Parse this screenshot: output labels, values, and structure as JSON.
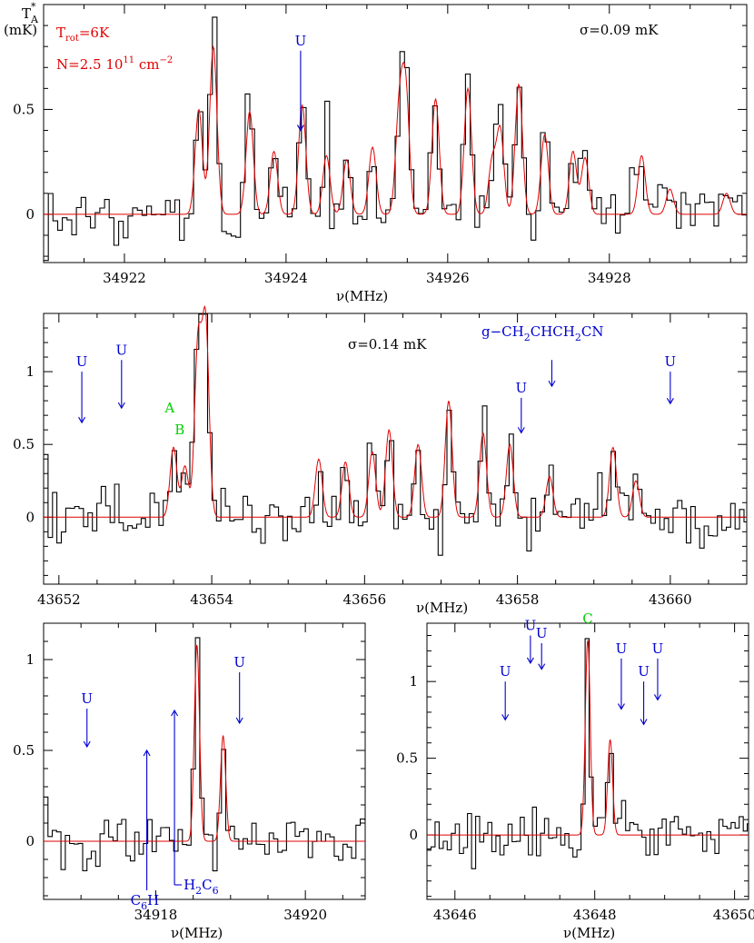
{
  "figure": {
    "ylabel_top": "T",
    "ylabel_top_sub": "A",
    "ylabel_top_sup": "*",
    "ylabel_unit": "(mK)"
  },
  "chart_data": [
    {
      "type": "line",
      "xlabel": "ν(MHz)",
      "xlim": [
        34921.0,
        34929.7
      ],
      "ylim": [
        -0.23,
        1.0
      ],
      "xticks": [
        34922,
        34924,
        34926,
        34928
      ],
      "xtick_labels": [
        "34922",
        "34924",
        "34926",
        "34928"
      ],
      "yticks": [
        0,
        0.5
      ],
      "ytick_labels": [
        "0",
        "0.5"
      ],
      "sigma_label": "σ=0.09 mK",
      "model_params": {
        "trot": "T",
        "trot_sub": "rot",
        "trot_val": "=6K",
        "n_label": "N=2.5 10",
        "n_exp": "11",
        "n_unit": " cm",
        "n_unit_exp": "−2"
      },
      "series": [
        {
          "role": "observed",
          "color": "#000000",
          "noise_sigma": 0.09,
          "step": 0.058,
          "seed": 11
        },
        {
          "role": "model",
          "color": "#e00000",
          "width": 0.045,
          "lines": [
            [
              34922.92,
              0.5
            ],
            [
              34923.1,
              0.8
            ],
            [
              34923.55,
              0.49
            ],
            [
              34923.85,
              0.3
            ],
            [
              34924.2,
              0.52
            ],
            [
              34924.5,
              0.28
            ],
            [
              34924.75,
              0.26
            ],
            [
              34925.07,
              0.32
            ],
            [
              34925.4,
              0.48
            ],
            [
              34925.48,
              0.58
            ],
            [
              34925.85,
              0.55
            ],
            [
              34926.25,
              0.6
            ],
            [
              34926.55,
              0.25
            ],
            [
              34926.65,
              0.4
            ],
            [
              34926.88,
              0.62
            ],
            [
              34927.2,
              0.38
            ],
            [
              34927.55,
              0.3
            ],
            [
              34927.7,
              0.27
            ],
            [
              34928.4,
              0.28
            ],
            [
              34928.75,
              0.12
            ],
            [
              34929.45,
              0.1
            ]
          ]
        }
      ],
      "annotations": [
        {
          "label": "U",
          "x": 34924.18,
          "y_tip": 0.4,
          "y_tail": 0.78,
          "color": "#0000d0"
        }
      ]
    },
    {
      "type": "line",
      "xlabel": "ν(MHz)",
      "xlim": [
        43651.8,
        43661.0
      ],
      "ylim": [
        -0.46,
        1.4
      ],
      "xticks": [
        43652,
        43654,
        43656,
        43658,
        43660
      ],
      "xtick_labels": [
        "43652",
        "43654",
        "43656",
        "43658",
        "43660"
      ],
      "yticks": [
        0,
        0.5,
        1
      ],
      "ytick_labels": [
        "0",
        "0.5",
        "1"
      ],
      "sigma_label": "σ=0.14 mK",
      "series": [
        {
          "role": "observed",
          "color": "#000000",
          "noise_sigma": 0.14,
          "step": 0.058,
          "seed": 23
        },
        {
          "role": "model",
          "color": "#e00000",
          "width": 0.045,
          "lines": [
            [
              43653.5,
              0.48
            ],
            [
              43653.65,
              0.35
            ],
            [
              43653.82,
              1.18
            ],
            [
              43653.92,
              1.32
            ],
            [
              43655.4,
              0.4
            ],
            [
              43655.75,
              0.38
            ],
            [
              43656.1,
              0.45
            ],
            [
              43656.32,
              0.6
            ],
            [
              43656.7,
              0.5
            ],
            [
              43657.1,
              0.8
            ],
            [
              43657.55,
              0.58
            ],
            [
              43657.9,
              0.5
            ],
            [
              43658.42,
              0.28
            ],
            [
              43659.25,
              0.48
            ],
            [
              43659.55,
              0.25
            ]
          ]
        }
      ],
      "annotations": [
        {
          "label": "U",
          "x": 43652.3,
          "y_tip": 0.65,
          "y_tail": 1.0,
          "color": "#0000d0"
        },
        {
          "label": "U",
          "x": 43652.82,
          "y_tip": 0.75,
          "y_tail": 1.08,
          "color": "#0000d0"
        },
        {
          "label": "U",
          "x": 43658.05,
          "y_tip": 0.58,
          "y_tail": 0.82,
          "color": "#0000d0"
        },
        {
          "label": "U",
          "x": 43660.0,
          "y_tip": 0.78,
          "y_tail": 1.0,
          "color": "#0000d0"
        }
      ],
      "molecule_label": {
        "prefix": "g−CH",
        "s1": "2",
        "mid": "CHCH",
        "s2": "2",
        "suffix": "CN",
        "x": 43658.45,
        "y_tip": 0.9,
        "y_tail": 1.08,
        "color": "#0000d0"
      },
      "green_labels": [
        {
          "text": "A",
          "x": 43653.45,
          "y": 0.72,
          "color": "#00d000"
        },
        {
          "text": "B",
          "x": 43653.58,
          "y": 0.57,
          "color": "#00d000"
        }
      ]
    },
    {
      "type": "line",
      "xlabel": "ν(MHz)",
      "xlim": [
        34916.5,
        34920.8
      ],
      "ylim": [
        -0.32,
        1.2
      ],
      "xticks": [
        34918,
        34920
      ],
      "xtick_labels": [
        "34918",
        "34920"
      ],
      "yticks": [
        0,
        0.5,
        1
      ],
      "ytick_labels": [
        "0",
        "0.5",
        "1"
      ],
      "series": [
        {
          "role": "observed",
          "color": "#000000",
          "noise_sigma": 0.12,
          "step": 0.058,
          "seed": 37
        },
        {
          "role": "model",
          "color": "#e00000",
          "width": 0.035,
          "lines": [
            [
              34918.55,
              1.08
            ],
            [
              34918.9,
              0.58
            ]
          ]
        }
      ],
      "annotations": [
        {
          "label": "U",
          "x": 34917.08,
          "y_tip": 0.52,
          "y_tail": 0.73,
          "color": "#0000d0"
        },
        {
          "label": "U",
          "x": 34919.12,
          "y_tip": 0.65,
          "y_tail": 0.93,
          "color": "#0000d0"
        }
      ],
      "c6h_label": {
        "base": "C",
        "sub": "6",
        "tail": "H",
        "x": 34917.88,
        "y_tip": 0.5,
        "y_base": -0.27,
        "color": "#0000d0"
      },
      "h2c6_label": {
        "base": "H",
        "sub1": "2",
        "mid": "C",
        "sub2": "6",
        "x": 34918.25,
        "y_tip": 0.72,
        "y_base": -0.27,
        "color": "#0000d0"
      }
    },
    {
      "type": "line",
      "xlabel": "ν(MHz)",
      "xlim": [
        43645.6,
        43650.2
      ],
      "ylim": [
        -0.42,
        1.38
      ],
      "xticks": [
        43646,
        43648,
        43650
      ],
      "xtick_labels": [
        "43646",
        "43648",
        "43650"
      ],
      "yticks": [
        0,
        0.5,
        1
      ],
      "ytick_labels": [
        "0",
        "0.5",
        "1"
      ],
      "series": [
        {
          "role": "observed",
          "color": "#000000",
          "noise_sigma": 0.12,
          "step": 0.058,
          "seed": 51
        },
        {
          "role": "model",
          "color": "#e00000",
          "width": 0.035,
          "lines": [
            [
              43647.9,
              1.27
            ],
            [
              43648.22,
              0.62
            ]
          ]
        }
      ],
      "annotations": [
        {
          "label": "U",
          "x": 43646.72,
          "y_tip": 0.75,
          "y_tail": 1.0,
          "color": "#0000d0"
        },
        {
          "label": "U",
          "x": 43647.08,
          "y_tip": 1.12,
          "y_tail": 1.3,
          "color": "#0000d0"
        },
        {
          "label": "U",
          "x": 43647.24,
          "y_tip": 1.08,
          "y_tail": 1.25,
          "color": "#0000d0"
        },
        {
          "label": "U",
          "x": 43648.38,
          "y_tip": 0.82,
          "y_tail": 1.15,
          "color": "#0000d0"
        },
        {
          "label": "U",
          "x": 43648.7,
          "y_tip": 0.72,
          "y_tail": 1.0,
          "color": "#0000d0"
        },
        {
          "label": "U",
          "x": 43648.9,
          "y_tip": 0.88,
          "y_tail": 1.15,
          "color": "#0000d0"
        }
      ],
      "green_labels": [
        {
          "text": "C",
          "x": 43647.9,
          "y": 1.38,
          "color": "#00d000"
        }
      ]
    }
  ]
}
